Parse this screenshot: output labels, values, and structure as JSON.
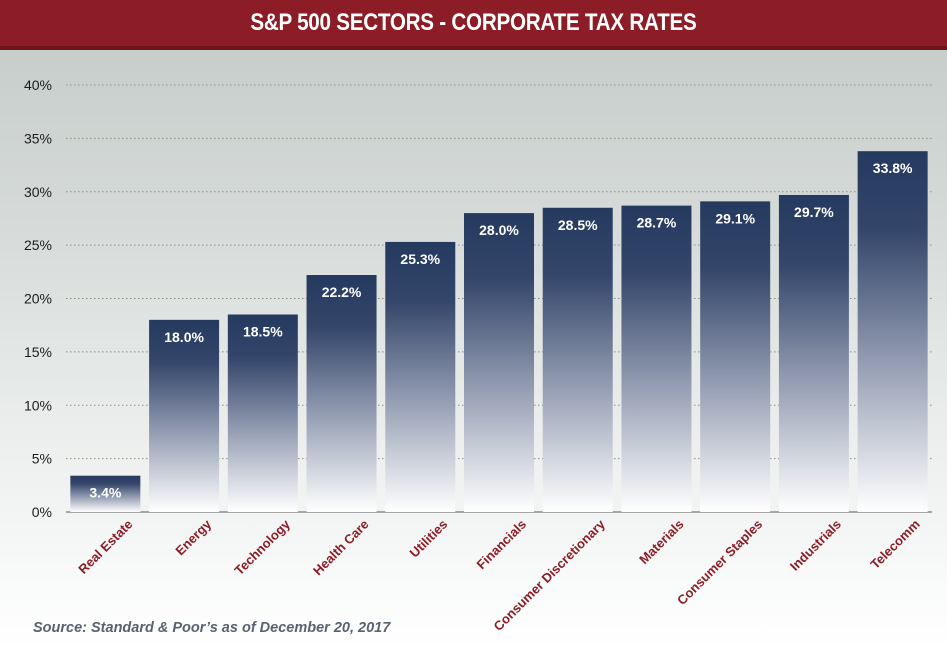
{
  "header": {
    "title": "S&P 500 SECTORS - CORPORATE TAX RATES"
  },
  "footer": {
    "source": "Source: Standard & Poor’s as of December 20, 2017"
  },
  "chart_data": {
    "type": "bar",
    "title": "S&P 500 SECTORS - CORPORATE TAX RATES",
    "categories": [
      "Real Estate",
      "Energy",
      "Technology",
      "Health Care",
      "Utilities",
      "Financials",
      "Consumer Discretionary",
      "Materials",
      "Consumer Staples",
      "Industrials",
      "Telecomm"
    ],
    "values": [
      3.4,
      18.0,
      18.5,
      22.2,
      25.3,
      28.0,
      28.5,
      28.7,
      29.1,
      29.7,
      33.8
    ],
    "data_labels": [
      "3.4%",
      "18.0%",
      "18.5%",
      "22.2%",
      "25.3%",
      "28.0%",
      "28.5%",
      "28.7%",
      "29.1%",
      "29.7%",
      "33.8%"
    ],
    "y_ticks": [
      0,
      5,
      10,
      15,
      20,
      25,
      30,
      35,
      40
    ],
    "y_tick_labels": [
      "0%",
      "5%",
      "10%",
      "15%",
      "20%",
      "25%",
      "30%",
      "35%",
      "40%"
    ],
    "ylim": [
      0,
      40
    ],
    "xlabel": "",
    "ylabel": "",
    "grid": "dotted-horizontal",
    "legend": "none",
    "bar_color_top": "#253a5f",
    "bar_color_bottom": "#ffffff",
    "title_bar_color": "#8c1c25",
    "category_label_color": "#8c1c25"
  }
}
